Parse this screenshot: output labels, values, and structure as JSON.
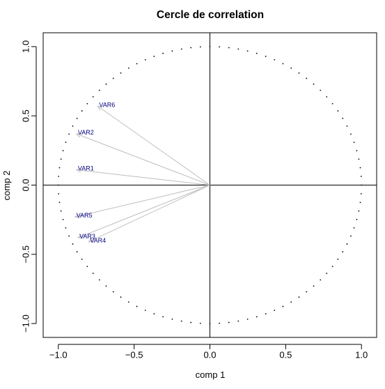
{
  "chart_data": {
    "type": "scatter",
    "title": "Cercle de correlation",
    "xlabel": "comp 1",
    "ylabel": "comp 2",
    "xlim": [
      -1.1,
      1.1
    ],
    "ylim": [
      -1.1,
      1.1
    ],
    "xticks": [
      -1.0,
      -0.5,
      0.0,
      0.5,
      1.0
    ],
    "yticks": [
      -1.0,
      -0.5,
      0.0,
      0.5,
      1.0
    ],
    "xtick_labels": [
      "−1.0",
      "−0.5",
      "0.0",
      "0.5",
      "1.0"
    ],
    "ytick_labels": [
      "−1.0",
      "−0.5",
      "0.0",
      "0.5",
      "1.0"
    ],
    "unit_circle": true,
    "reference_lines": {
      "x": 0,
      "y": 0
    },
    "arrow_color": "#bebebe",
    "label_color": "#000080",
    "variables": [
      {
        "name": "VAR6",
        "x": -0.74,
        "y": 0.57
      },
      {
        "name": "VAR2",
        "x": -0.88,
        "y": 0.37
      },
      {
        "name": "VAR1",
        "x": -0.88,
        "y": 0.11
      },
      {
        "name": "VAR5",
        "x": -0.89,
        "y": -0.23
      },
      {
        "name": "VAR3",
        "x": -0.87,
        "y": -0.38
      },
      {
        "name": "VAR4",
        "x": -0.8,
        "y": -0.41
      }
    ]
  }
}
